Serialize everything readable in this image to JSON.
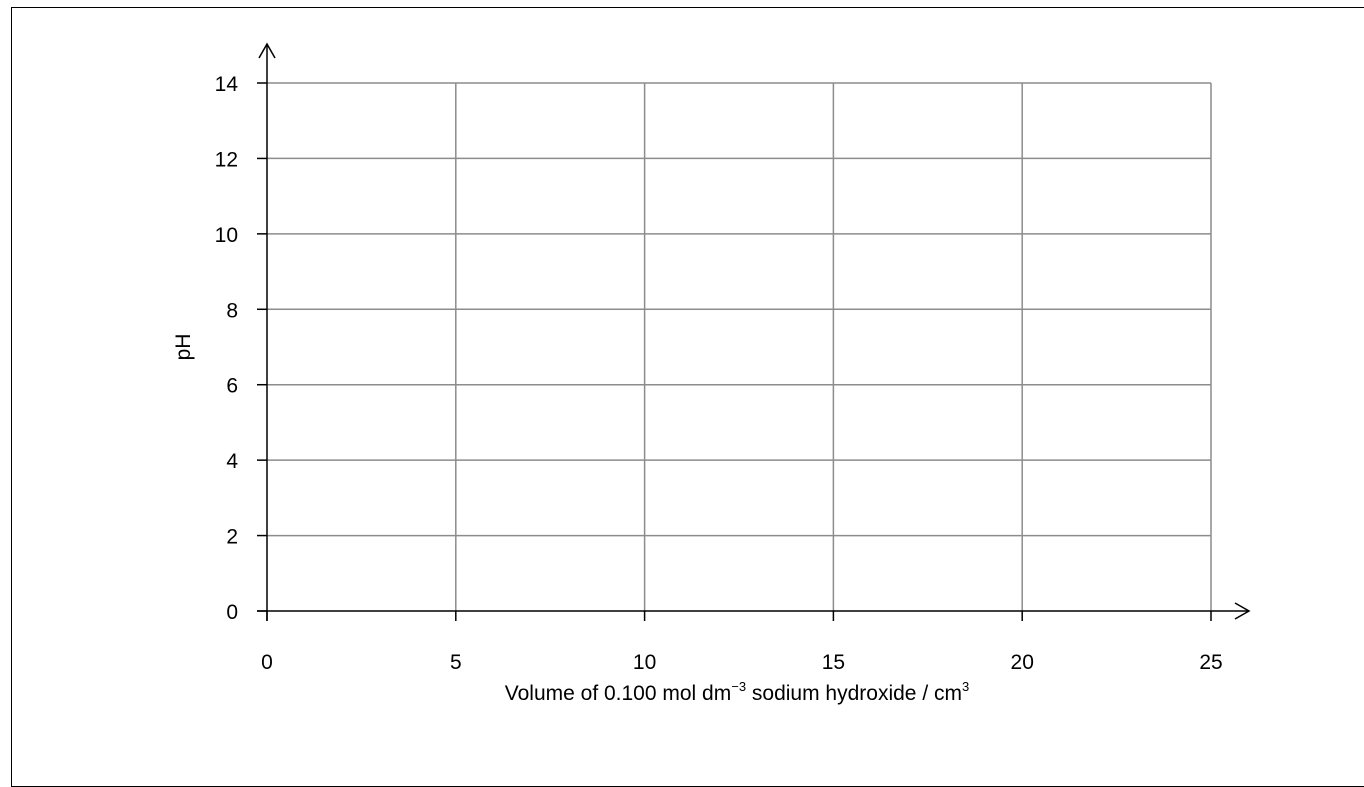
{
  "chart_data": {
    "type": "line",
    "title": "",
    "xlabel": {
      "prefix": "Volume of 0.100 mol dm",
      "sup1": "−3",
      "middle": " sodium hydroxide / cm",
      "sup2": "3"
    },
    "ylabel": "pH",
    "xlim": [
      0,
      25
    ],
    "ylim": [
      0,
      14
    ],
    "x_ticks": [
      0,
      5,
      10,
      15,
      20,
      25
    ],
    "y_ticks": [
      0,
      2,
      4,
      6,
      8,
      10,
      12,
      14
    ],
    "grid": true,
    "series": []
  },
  "colors": {
    "grid": "#8c8c8c",
    "axis": "#000000",
    "frame": "#000000"
  }
}
